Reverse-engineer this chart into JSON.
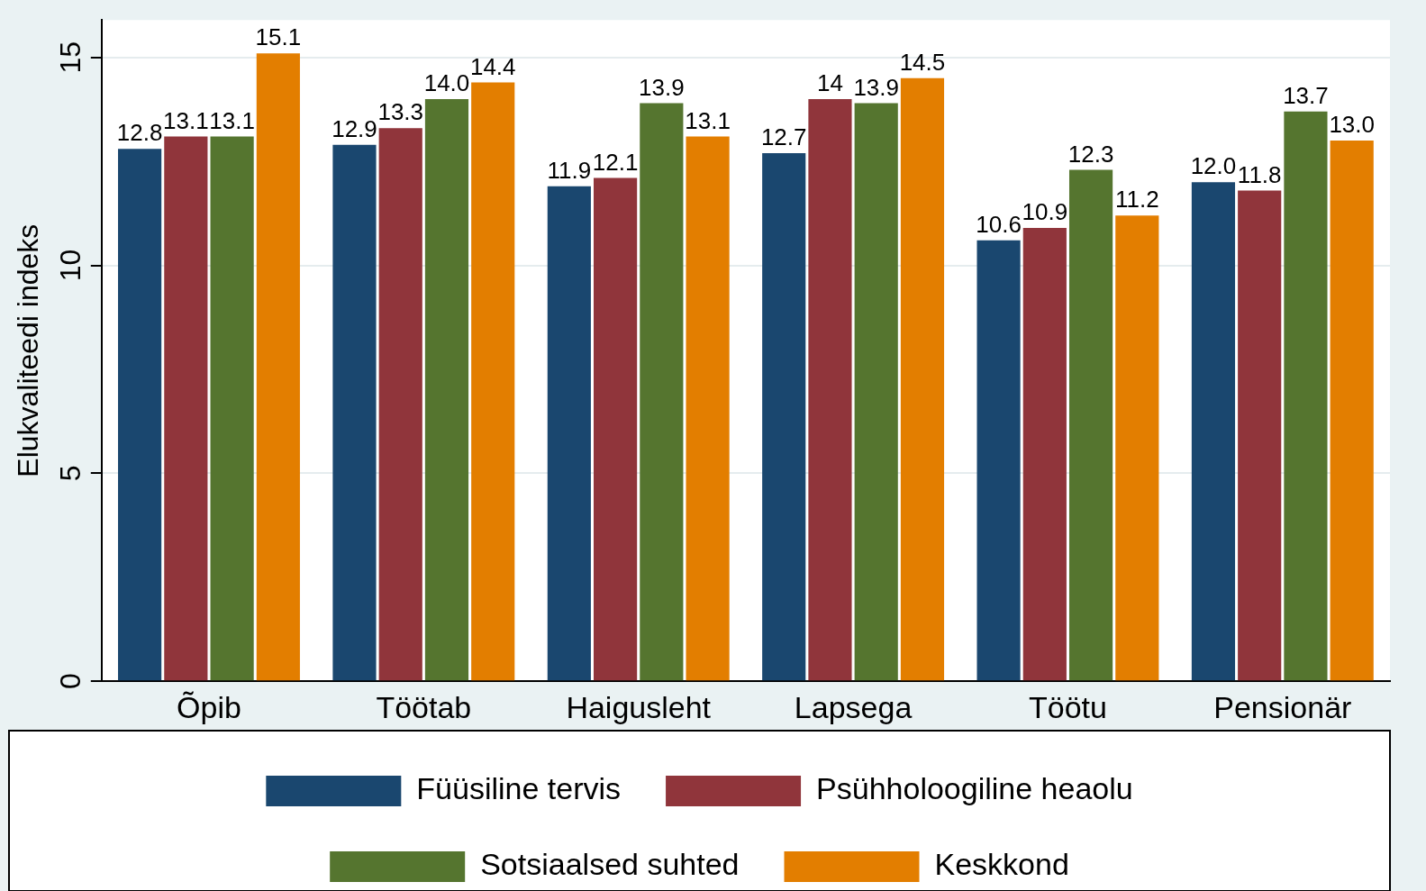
{
  "chart_data": {
    "type": "bar",
    "ylabel": "Elukvaliteedi indeks",
    "categories": [
      "Õpib",
      "Töötab",
      "Haigusleht",
      "Lapsega",
      "Töötu",
      "Pensionär"
    ],
    "series": [
      {
        "name": "Füüsiline tervis",
        "color": "#1a476f",
        "values": [
          12.8,
          12.9,
          11.9,
          12.7,
          10.6,
          12.0
        ],
        "value_labels": [
          "12.8",
          "12.9",
          "11.9",
          "12.7",
          "10.6",
          "12.0"
        ]
      },
      {
        "name": "Psühholoogiline heaolu",
        "color": "#90353b",
        "values": [
          13.1,
          13.3,
          12.1,
          14,
          10.9,
          11.8
        ],
        "value_labels": [
          "13.1",
          "13.3",
          "12.1",
          "14",
          "10.9",
          "11.8"
        ]
      },
      {
        "name": "Sotsiaalsed suhted",
        "color": "#55752f",
        "values": [
          13.1,
          14.0,
          13.9,
          13.9,
          12.3,
          13.7
        ],
        "value_labels": [
          "13.1",
          "14.0",
          "13.9",
          "13.9",
          "12.3",
          "13.7"
        ]
      },
      {
        "name": "Keskkond",
        "color": "#e37e00",
        "values": [
          15.1,
          14.4,
          13.1,
          14.5,
          11.2,
          13.0
        ],
        "value_labels": [
          "15.1",
          "14.4",
          "13.1",
          "14.5",
          "11.2",
          "13.0"
        ]
      }
    ],
    "ylim": [
      0,
      15.9
    ],
    "yticks": [
      0,
      5,
      10,
      15
    ],
    "grid": "y",
    "legend": "bottom"
  }
}
